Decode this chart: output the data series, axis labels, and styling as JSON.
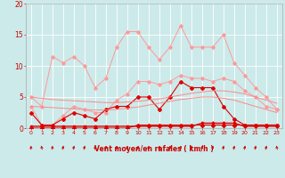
{
  "x": [
    0,
    1,
    2,
    3,
    4,
    5,
    6,
    7,
    8,
    9,
    10,
    11,
    12,
    13,
    14,
    15,
    16,
    17,
    18,
    19,
    20,
    21,
    22,
    23
  ],
  "series": [
    {
      "name": "light_pink_upper",
      "color": "#ff9999",
      "linewidth": 0.7,
      "marker": "D",
      "markersize": 1.8,
      "values": [
        5.0,
        3.5,
        11.5,
        10.5,
        11.5,
        10.0,
        6.5,
        8.0,
        13.0,
        15.5,
        15.5,
        13.0,
        11.0,
        13.0,
        16.5,
        13.0,
        13.0,
        13.0,
        15.0,
        10.5,
        8.5,
        6.5,
        5.0,
        3.0
      ]
    },
    {
      "name": "light_pink_lower",
      "color": "#ff9999",
      "linewidth": 0.7,
      "marker": "D",
      "markersize": 1.8,
      "values": [
        3.5,
        0.5,
        0.5,
        2.0,
        3.5,
        3.0,
        2.5,
        2.5,
        4.5,
        5.5,
        7.5,
        7.5,
        7.0,
        7.5,
        8.5,
        8.0,
        8.0,
        7.5,
        8.0,
        7.5,
        6.0,
        5.0,
        3.5,
        3.0
      ]
    },
    {
      "name": "dark_red_upper",
      "color": "#dd0000",
      "linewidth": 0.8,
      "marker": "D",
      "markersize": 2.0,
      "values": [
        2.5,
        0.5,
        0.5,
        1.5,
        2.5,
        2.0,
        1.5,
        3.0,
        3.5,
        3.5,
        5.0,
        5.0,
        3.0,
        5.0,
        7.5,
        6.5,
        6.5,
        6.5,
        3.5,
        1.5,
        0.5,
        0.5,
        0.5,
        0.5
      ]
    },
    {
      "name": "dark_red_lower",
      "color": "#dd0000",
      "linewidth": 0.8,
      "marker": "D",
      "markersize": 2.0,
      "values": [
        0.0,
        0.0,
        0.0,
        0.0,
        0.0,
        0.0,
        0.0,
        0.0,
        0.0,
        0.0,
        0.5,
        0.5,
        0.5,
        0.5,
        0.5,
        0.5,
        0.5,
        0.5,
        0.5,
        0.5,
        0.5,
        0.5,
        0.5,
        0.5
      ]
    },
    {
      "name": "salmon_diagonal1",
      "color": "#ff8888",
      "linewidth": 0.7,
      "marker": null,
      "markersize": 0,
      "values": [
        5.0,
        4.8,
        4.6,
        4.5,
        4.4,
        4.3,
        4.2,
        4.1,
        4.1,
        4.2,
        4.3,
        4.5,
        4.7,
        5.0,
        5.3,
        5.6,
        5.8,
        6.0,
        6.0,
        5.8,
        5.5,
        5.0,
        4.5,
        4.0
      ]
    },
    {
      "name": "salmon_diagonal2",
      "color": "#ff8888",
      "linewidth": 0.7,
      "marker": null,
      "markersize": 0,
      "values": [
        3.5,
        3.4,
        3.3,
        3.2,
        3.1,
        3.0,
        2.9,
        2.9,
        3.0,
        3.2,
        3.4,
        3.7,
        4.0,
        4.3,
        4.6,
        4.8,
        5.0,
        5.0,
        4.8,
        4.5,
        4.0,
        3.5,
        3.0,
        2.5
      ]
    },
    {
      "name": "dark_red_flat",
      "color": "#dd0000",
      "linewidth": 1.0,
      "marker": "D",
      "markersize": 1.5,
      "values": [
        0.3,
        0.3,
        0.3,
        0.3,
        0.3,
        0.3,
        0.3,
        0.3,
        0.3,
        0.3,
        0.3,
        0.3,
        0.3,
        0.3,
        0.3,
        0.3,
        0.8,
        0.8,
        0.8,
        0.8,
        0.3,
        0.3,
        0.3,
        0.3
      ]
    }
  ],
  "xlim": [
    -0.5,
    23.5
  ],
  "ylim": [
    0,
    20
  ],
  "yticks": [
    0,
    5,
    10,
    15,
    20
  ],
  "xticks": [
    0,
    1,
    2,
    3,
    4,
    5,
    6,
    7,
    8,
    9,
    10,
    11,
    12,
    13,
    14,
    15,
    16,
    17,
    18,
    19,
    20,
    21,
    22,
    23
  ],
  "xlabel": "Vent moyen/en rafales ( km/h )",
  "xlabel_color": "#cc0000",
  "xlabel_fontsize": 5.5,
  "tick_color": "#cc0000",
  "tick_fontsize": 4.5,
  "background_color": "#cceaea",
  "grid_color": "#ffffff",
  "axis_color": "#aaaaaa",
  "wind_arrows_color": "#cc0000",
  "ytick_fontsize": 5.5
}
